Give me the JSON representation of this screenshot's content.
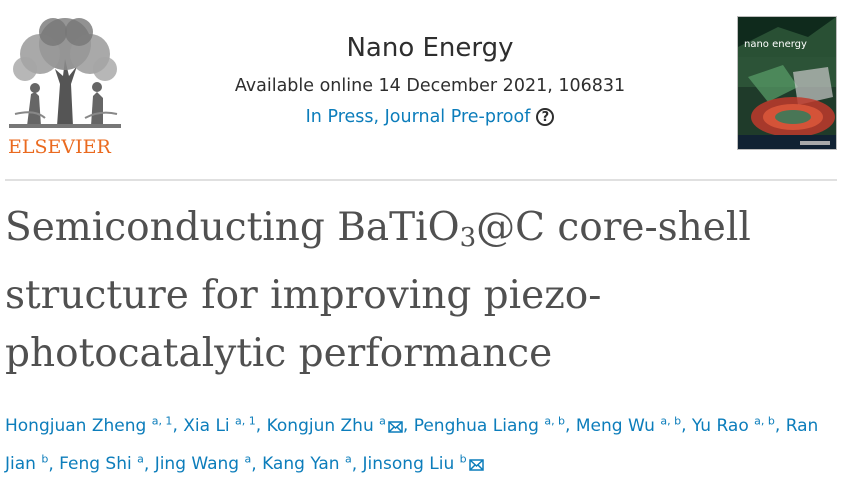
{
  "publisher": {
    "logo_text": "ELSEVIER"
  },
  "journal": {
    "title": "Nano Energy",
    "availability": "Available online 14 December 2021, 106831",
    "status": "In Press, Journal Pre-proof",
    "help_icon": "question-circle-icon",
    "help_glyph": "?"
  },
  "cover": {
    "title": "nano energy"
  },
  "article": {
    "title_line1": "Semiconducting BaTiO",
    "title_sub": "3",
    "title_line1_rest": "@C core-shell",
    "title_line2": "structure for improving piezo-",
    "title_line3": "photocatalytic performance"
  },
  "authors": [
    {
      "name": "Hongjuan Zheng",
      "affil": "a, 1",
      "email": false
    },
    {
      "name": "Xia Li",
      "affil": "a, 1",
      "email": false
    },
    {
      "name": "Kongjun Zhu",
      "affil": "a",
      "email": true
    },
    {
      "name": "Penghua Liang",
      "affil": "a, b",
      "email": false
    },
    {
      "name": "Meng Wu",
      "affil": "a, b",
      "email": false
    },
    {
      "name": "Yu Rao",
      "affil": "a, b",
      "email": false
    },
    {
      "name": "Ran Jian",
      "affil": "b",
      "email": false
    },
    {
      "name": "Feng Shi",
      "affil": "a",
      "email": false
    },
    {
      "name": "Jing Wang",
      "affil": "a",
      "email": false
    },
    {
      "name": "Kang Yan",
      "affil": "a",
      "email": false
    },
    {
      "name": "Jinsong Liu",
      "affil": "b",
      "email": true
    }
  ],
  "colors": {
    "link": "#0c7dbb",
    "brand": "#ea6a1f",
    "text": "#2e2e2e"
  }
}
